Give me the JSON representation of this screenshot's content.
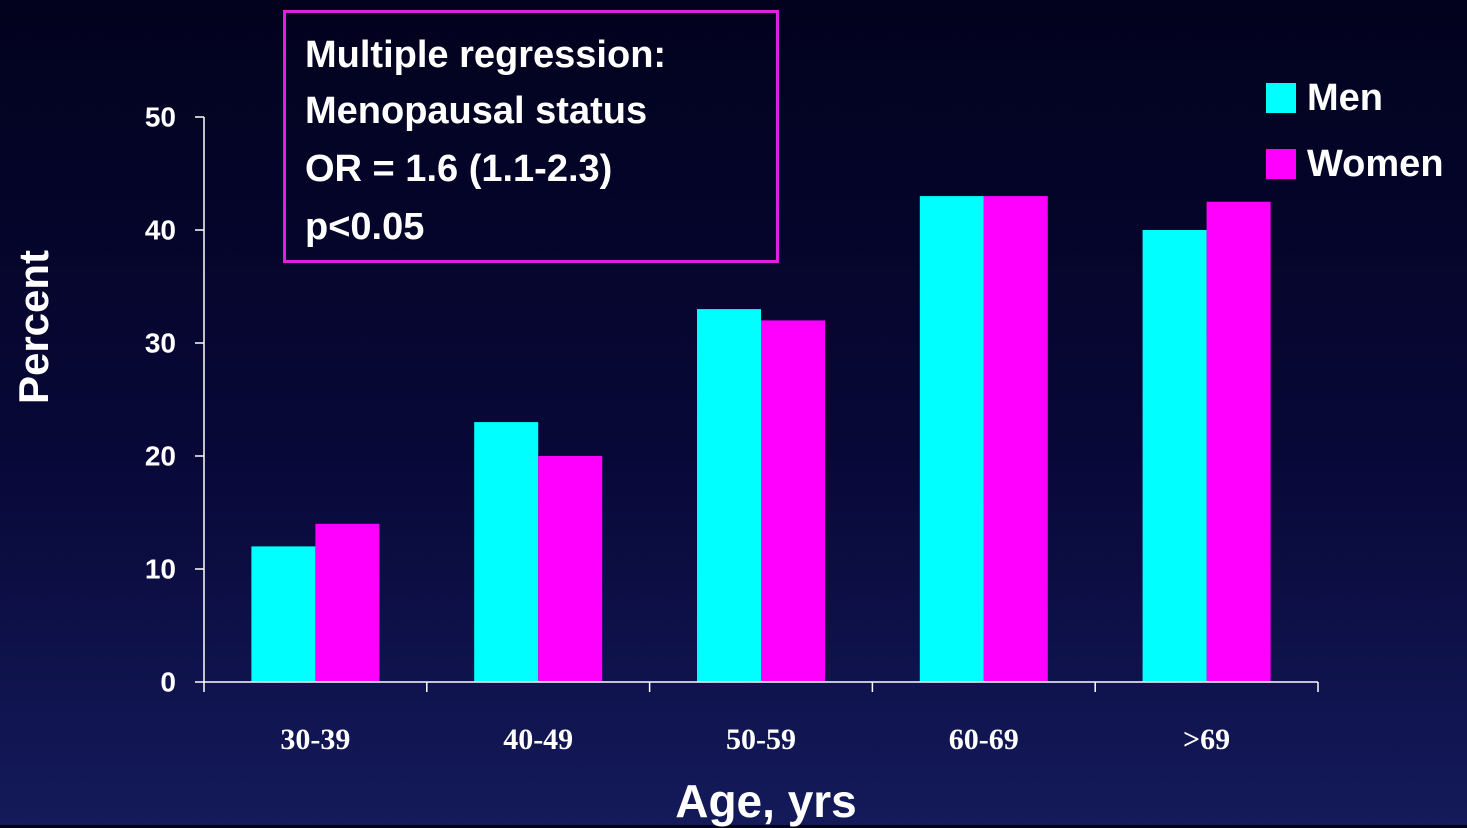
{
  "chart_data": {
    "type": "bar",
    "categories": [
      "30-39",
      "40-49",
      "50-59",
      "60-69",
      ">69"
    ],
    "series": [
      {
        "name": "Men",
        "color": "#00ffff",
        "values": [
          12,
          23,
          33,
          43,
          40
        ]
      },
      {
        "name": "Women",
        "color": "#ff00ff",
        "values": [
          14,
          20,
          32,
          43,
          42.5
        ]
      }
    ],
    "xlabel": "Age, yrs",
    "ylabel": "Percent",
    "ylim": [
      0,
      50
    ],
    "yticks": [
      "0",
      "10",
      "20",
      "30",
      "40",
      "50"
    ],
    "grid": false,
    "legend": "top-right",
    "annotation": [
      "Multiple regression:",
      "Menopausal status",
      "OR = 1.6 (1.1-2.3)",
      "p<0.05"
    ],
    "annotation_border_color": "#e020e0"
  }
}
